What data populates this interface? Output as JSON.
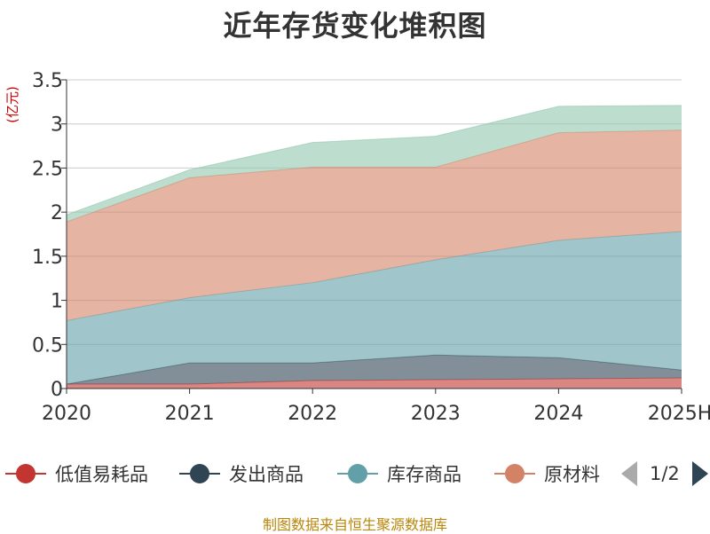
{
  "title": "近年存货变化堆积图",
  "source": "制图数据来自恒生聚源数据库",
  "legend_page": "1/2",
  "chart_data": {
    "type": "area",
    "stacked": true,
    "title": "近年存货变化堆积图",
    "ylabel": "(亿元)",
    "xlabel": "",
    "categories": [
      "2020",
      "2021",
      "2022",
      "2023",
      "2024",
      "2025H"
    ],
    "ylim": [
      0,
      3.5
    ],
    "yticks": [
      "0",
      "0.5",
      "1",
      "1.5",
      "2",
      "2.5",
      "3",
      "3.5"
    ],
    "grid": true,
    "legend_position": "bottom",
    "series": [
      {
        "name": "低值易耗品",
        "color": "#c23531",
        "values": [
          0.05,
          0.05,
          0.09,
          0.1,
          0.11,
          0.12
        ]
      },
      {
        "name": "发出商品",
        "color": "#2f4554",
        "values": [
          0.0,
          0.24,
          0.2,
          0.28,
          0.24,
          0.09
        ]
      },
      {
        "name": "库存商品",
        "color": "#61a0a8",
        "values": [
          0.72,
          0.74,
          0.91,
          1.08,
          1.33,
          1.57
        ]
      },
      {
        "name": "原材料",
        "color": "#d48265",
        "values": [
          1.12,
          1.36,
          1.31,
          1.05,
          1.22,
          1.15
        ]
      },
      {
        "name": "",
        "color": "#91c7ae",
        "values": [
          0.08,
          0.09,
          0.28,
          0.35,
          0.3,
          0.28
        ]
      }
    ]
  }
}
